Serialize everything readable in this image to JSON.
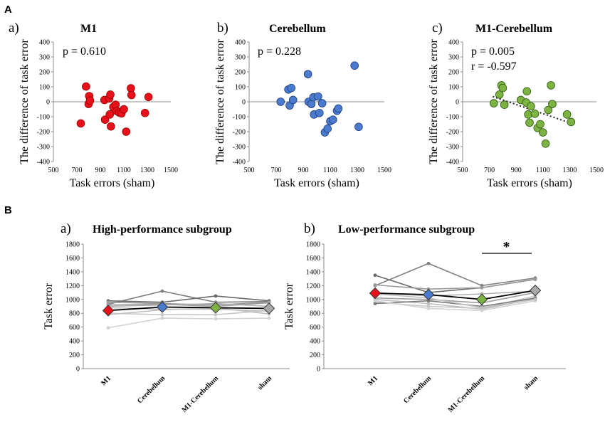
{
  "figure": {
    "panel_a": "A",
    "panel_b": "B"
  },
  "chart_data": [
    {
      "id": "a1",
      "type": "scatter",
      "sub_label": "a)",
      "title": "M1",
      "stat1": "p = 0.610",
      "stat2": "",
      "color": "#e8111b",
      "stroke": "#9a0000",
      "xlabel": "Task errors (sham)",
      "ylabel": "The difference of task error",
      "xlim": [
        500,
        1500
      ],
      "ylim": [
        -400,
        400
      ],
      "xticks": [
        "500",
        "700",
        "900",
        "1100",
        "1300",
        "1500"
      ],
      "yticks": [
        "-400",
        "-300",
        "-200",
        "-100",
        "0",
        "100",
        "200",
        "300",
        "400"
      ],
      "points": [
        [
          733,
          -145
        ],
        [
          778,
          102
        ],
        [
          800,
          -15
        ],
        [
          805,
          38
        ],
        [
          812,
          8
        ],
        [
          935,
          12
        ],
        [
          940,
          -120
        ],
        [
          975,
          22
        ],
        [
          985,
          48
        ],
        [
          980,
          -85
        ],
        [
          990,
          -165
        ],
        [
          1010,
          -35
        ],
        [
          1030,
          -20
        ],
        [
          1040,
          -62
        ],
        [
          1060,
          -72
        ],
        [
          1080,
          -78
        ],
        [
          1100,
          -50
        ],
        [
          1120,
          -200
        ],
        [
          1160,
          90
        ],
        [
          1165,
          45
        ],
        [
          1280,
          -75
        ],
        [
          1310,
          32
        ]
      ],
      "trendline": null
    },
    {
      "id": "a2",
      "type": "scatter",
      "sub_label": "b)",
      "title": "Cerebellum",
      "stat1": "p = 0.228",
      "stat2": "",
      "color": "#4a7bcf",
      "stroke": "#1f3f7a",
      "xlabel": "Task errors (sham)",
      "ylabel": "The difference of task error",
      "xlim": [
        500,
        1500
      ],
      "ylim": [
        -400,
        400
      ],
      "xticks": [
        "500",
        "700",
        "900",
        "1100",
        "1300",
        "1500"
      ],
      "yticks": [
        "-400",
        "-300",
        "-200",
        "-100",
        "0",
        "100",
        "200",
        "300",
        "400"
      ],
      "points": [
        [
          733,
          0
        ],
        [
          790,
          82
        ],
        [
          800,
          -25
        ],
        [
          812,
          92
        ],
        [
          825,
          12
        ],
        [
          935,
          185
        ],
        [
          940,
          0
        ],
        [
          960,
          -15
        ],
        [
          975,
          30
        ],
        [
          980,
          -85
        ],
        [
          1010,
          35
        ],
        [
          1020,
          -75
        ],
        [
          1040,
          -10
        ],
        [
          1060,
          -205
        ],
        [
          1080,
          -180
        ],
        [
          1100,
          -130
        ],
        [
          1120,
          -120
        ],
        [
          1150,
          -60
        ],
        [
          1160,
          -45
        ],
        [
          1280,
          242
        ],
        [
          1310,
          -168
        ]
      ],
      "trendline": null
    },
    {
      "id": "a3",
      "type": "scatter",
      "sub_label": "c)",
      "title": "M1-Cerebellum",
      "stat1": "p = 0.005",
      "stat2": "r = -0.597",
      "color": "#7cb342",
      "stroke": "#2e5a10",
      "xlabel": "Task errors (sham)",
      "ylabel": "The difference of task error",
      "xlim": [
        500,
        1500
      ],
      "ylim": [
        -400,
        400
      ],
      "xticks": [
        "500",
        "700",
        "900",
        "1100",
        "1300",
        "1500"
      ],
      "yticks": [
        "-400",
        "-300",
        "-200",
        "-100",
        "0",
        "100",
        "200",
        "300",
        "400"
      ],
      "points": [
        [
          733,
          -10
        ],
        [
          775,
          48
        ],
        [
          790,
          110
        ],
        [
          800,
          92
        ],
        [
          812,
          -20
        ],
        [
          935,
          12
        ],
        [
          975,
          -5
        ],
        [
          980,
          70
        ],
        [
          990,
          -85
        ],
        [
          1000,
          -140
        ],
        [
          1010,
          -30
        ],
        [
          1040,
          -80
        ],
        [
          1060,
          -175
        ],
        [
          1080,
          -150
        ],
        [
          1100,
          -205
        ],
        [
          1120,
          -280
        ],
        [
          1140,
          -55
        ],
        [
          1160,
          110
        ],
        [
          1170,
          -15
        ],
        [
          1280,
          -85
        ],
        [
          1310,
          -135
        ]
      ],
      "trendline": [
        [
          725,
          35
        ],
        [
          1315,
          -145
        ]
      ]
    },
    {
      "id": "b1",
      "type": "line",
      "sub_label": "a)",
      "title": "High-performance subgroup",
      "ylabel": "Task error",
      "ylim": [
        0,
        1800
      ],
      "yticks": [
        "0",
        "200",
        "400",
        "600",
        "800",
        "1000",
        "1200",
        "1400",
        "1600",
        "1800"
      ],
      "categories": [
        "M1",
        "Cerebellum",
        "M1-Cerebellum",
        "sham"
      ],
      "subjects": [
        {
          "color": "#808080",
          "values": [
            930,
            1120,
            960,
            970
          ]
        },
        {
          "color": "#6a6a6a",
          "values": [
            980,
            960,
            1050,
            980
          ]
        },
        {
          "color": "#9a9a9a",
          "values": [
            960,
            940,
            920,
            960
          ]
        },
        {
          "color": "#b0b0b0",
          "values": [
            900,
            920,
            940,
            900
          ]
        },
        {
          "color": "#a0a0a0",
          "values": [
            920,
            930,
            900,
            950
          ]
        },
        {
          "color": "#bdbdbd",
          "values": [
            880,
            860,
            860,
            830
          ]
        },
        {
          "color": "#c8c8c8",
          "values": [
            800,
            780,
            780,
            840
          ]
        },
        {
          "color": "#c0c0c0",
          "values": [
            780,
            850,
            880,
            790
          ]
        },
        {
          "color": "#d2d2d2",
          "values": [
            590,
            730,
            720,
            730
          ]
        }
      ],
      "mean": {
        "values": [
          840,
          890,
          880,
          870
        ],
        "colors": [
          "#e8111b",
          "#4a7bcf",
          "#7cb342",
          "#a9a9a9"
        ]
      },
      "significance": null
    },
    {
      "id": "b2",
      "type": "line",
      "sub_label": "b)",
      "title": "Low-performance subgroup",
      "ylabel": "Task error",
      "ylim": [
        0,
        1800
      ],
      "yticks": [
        "0",
        "200",
        "400",
        "600",
        "800",
        "1000",
        "1200",
        "1400",
        "1600",
        "1800"
      ],
      "categories": [
        "M1",
        "Cerebellum",
        "M1-Cerebellum",
        "sham"
      ],
      "subjects": [
        {
          "color": "#6a6a6a",
          "values": [
            1350,
            1100,
            1170,
            1290
          ]
        },
        {
          "color": "#808080",
          "values": [
            1200,
            1520,
            1200,
            1310
          ]
        },
        {
          "color": "#9a9a9a",
          "values": [
            1210,
            1150,
            1170,
            1290
          ]
        },
        {
          "color": "#b0b0b0",
          "values": [
            1100,
            1050,
            1080,
            1120
          ]
        },
        {
          "color": "#a0a0a0",
          "values": [
            1020,
            1000,
            950,
            1100
          ]
        },
        {
          "color": "#bdbdbd",
          "values": [
            1000,
            940,
            860,
            1010
          ]
        },
        {
          "color": "#c8c8c8",
          "values": [
            960,
            900,
            870,
            1050
          ]
        },
        {
          "color": "#7a7a7a",
          "values": [
            940,
            980,
            900,
            1020
          ]
        },
        {
          "color": "#d2d2d2",
          "values": [
            980,
            870,
            840,
            980
          ]
        },
        {
          "color": "#c0c0c0",
          "values": [
            1080,
            1020,
            880,
            1000
          ]
        }
      ],
      "mean": {
        "values": [
          1090,
          1070,
          1000,
          1130
        ],
        "colors": [
          "#e8111b",
          "#4a7bcf",
          "#7cb342",
          "#a9a9a9"
        ]
      },
      "significance": {
        "from": 2,
        "to": 3,
        "label": "*"
      }
    }
  ]
}
